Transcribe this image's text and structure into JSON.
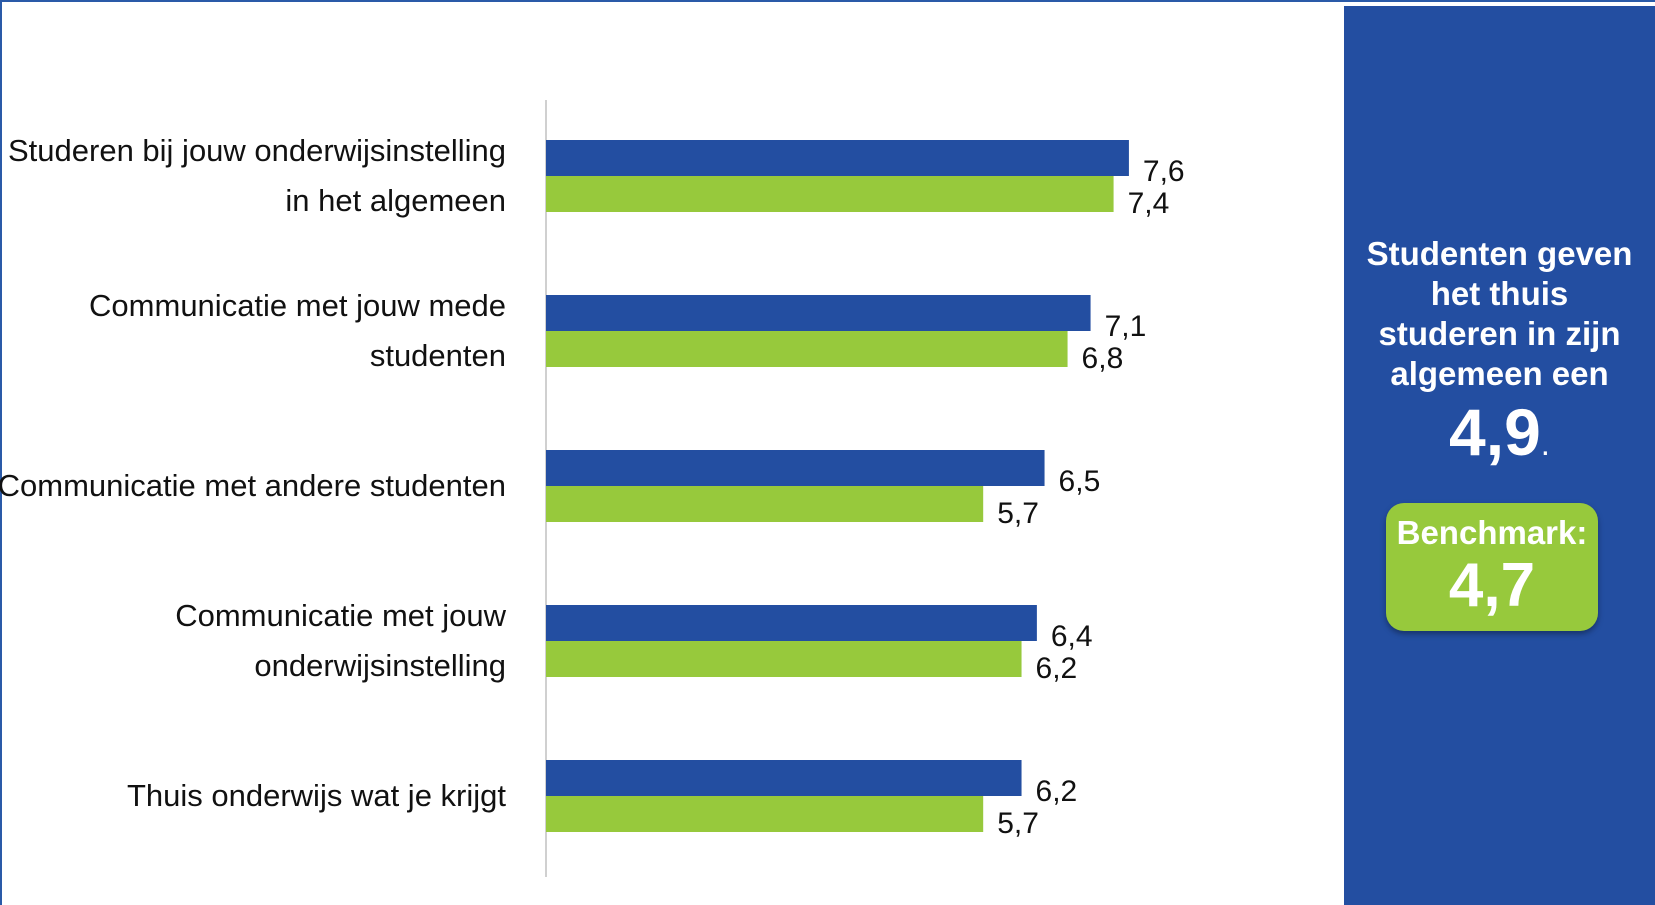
{
  "colors": {
    "series_1": "#234ea1",
    "series_2": "#97c93c",
    "panel_bg": "#234ea1",
    "benchmark_bg": "#97c93c",
    "axis": "#d0d0d0"
  },
  "chart_data": {
    "type": "bar",
    "orientation": "horizontal",
    "categories": [
      "Studeren bij jouw onderwijsinstelling in het algemeen",
      "Communicatie met jouw mede studenten",
      "Communicatie met andere studenten",
      "Communicatie met jouw onderwijsinstelling",
      "Thuis onderwijs wat je krijgt"
    ],
    "series": [
      {
        "values": [
          7.6,
          7.1,
          6.5,
          6.4,
          6.2
        ],
        "labels": [
          "7,6",
          "7,1",
          "6,5",
          "6,4",
          "6,2"
        ]
      },
      {
        "values": [
          7.4,
          6.8,
          5.7,
          6.2,
          5.7
        ],
        "labels": [
          "7,4",
          "6,8",
          "5,7",
          "6,2",
          "5,7"
        ]
      }
    ],
    "xlim": [
      0,
      10
    ],
    "grid": false,
    "title": "",
    "xlabel": "",
    "ylabel": ""
  },
  "side_panel": {
    "text": "Studenten geven het thuis studeren in zijn algemeen een",
    "value": "4,9",
    "dot": ".",
    "benchmark_label": "Benchmark:",
    "benchmark_value": "4,7"
  }
}
